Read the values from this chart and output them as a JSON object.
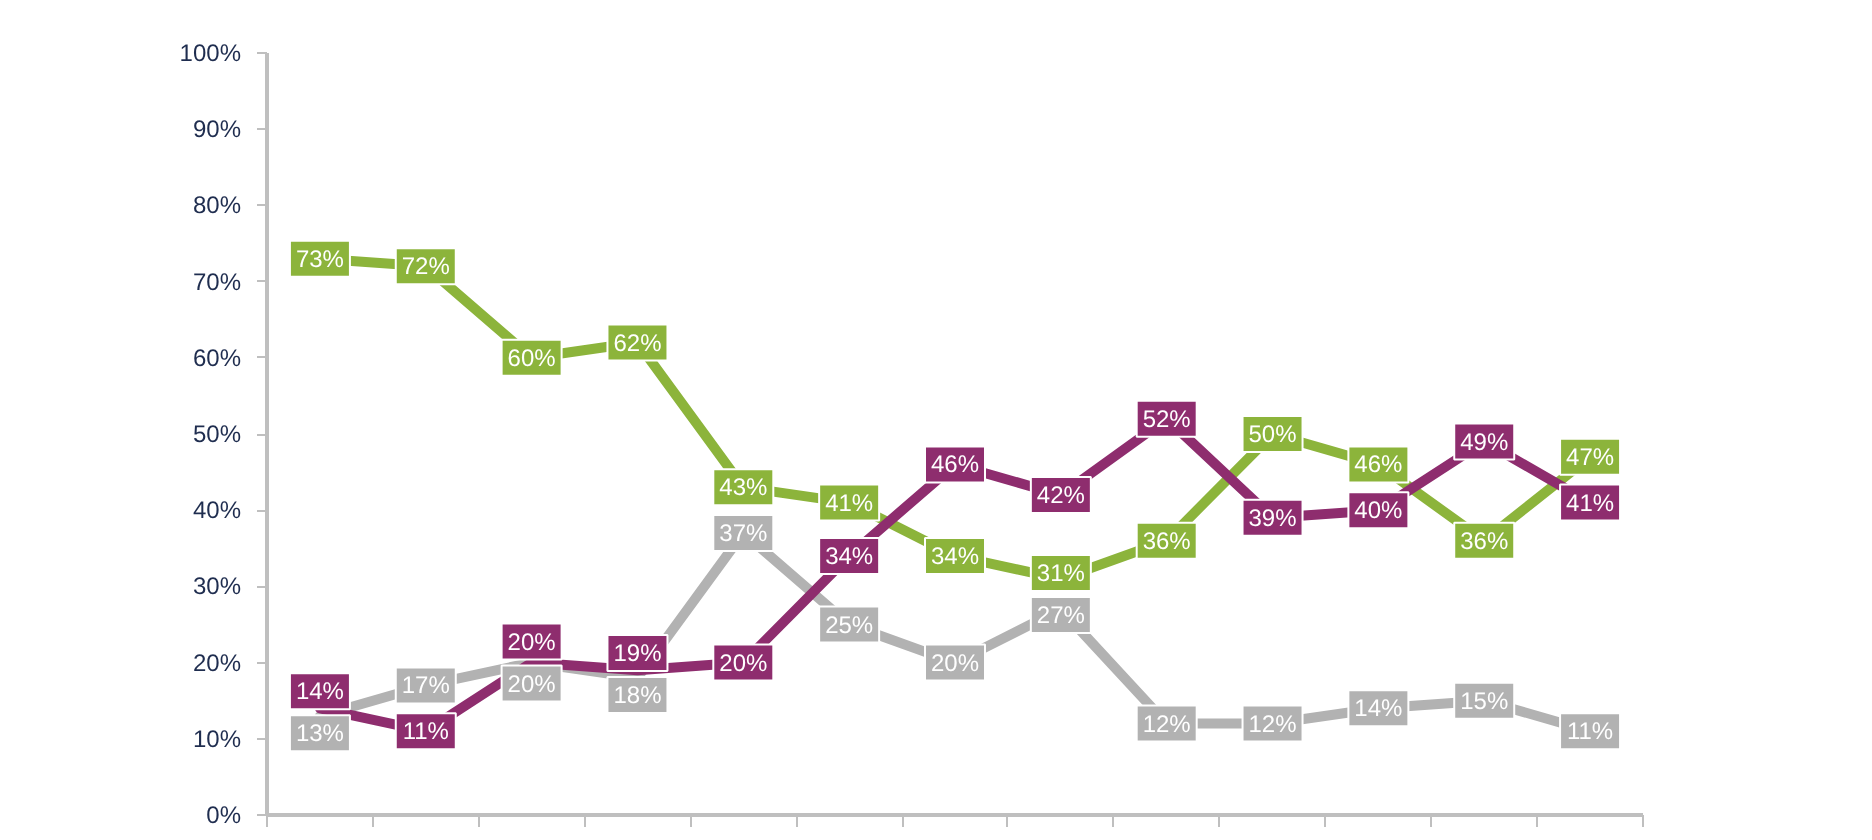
{
  "chart_data": {
    "type": "line",
    "categories": [
      null,
      null,
      null,
      null,
      null,
      null,
      null,
      null,
      null,
      null,
      null,
      null,
      null
    ],
    "ylim": [
      0,
      100
    ],
    "yticks": [
      {
        "value": 0,
        "label": "0%"
      },
      {
        "value": 10,
        "label": "10%"
      },
      {
        "value": 20,
        "label": "20%"
      },
      {
        "value": 30,
        "label": "30%"
      },
      {
        "value": 40,
        "label": "40%"
      },
      {
        "value": 50,
        "label": "50%"
      },
      {
        "value": 60,
        "label": "60%"
      },
      {
        "value": 70,
        "label": "70%"
      },
      {
        "value": 80,
        "label": "80%"
      },
      {
        "value": 90,
        "label": "90%"
      },
      {
        "value": 100,
        "label": "100%"
      }
    ],
    "tick_labels": "y",
    "grid": false,
    "marker": "square",
    "line_style": "solid",
    "series": [
      {
        "color": "#b2b2b2",
        "values": [
          13,
          17,
          20,
          18,
          37,
          25,
          20,
          27,
          12,
          12,
          14,
          15,
          11
        ],
        "value_labels": [
          "13%",
          "17%",
          "20%",
          "18%",
          "37%",
          "25%",
          "20%",
          "27%",
          "12%",
          "12%",
          "14%",
          "15%",
          "11%"
        ]
      },
      {
        "color": "#8cb43b",
        "values": [
          73,
          72,
          60,
          62,
          43,
          41,
          34,
          31,
          36,
          50,
          46,
          36,
          47
        ],
        "value_labels": [
          "73%",
          "72%",
          "60%",
          "62%",
          "43%",
          "41%",
          "34%",
          "31%",
          "36%",
          "50%",
          "46%",
          "36%",
          "47%"
        ]
      },
      {
        "color": "#8e2d6e",
        "values": [
          14,
          11,
          20,
          19,
          20,
          34,
          46,
          42,
          52,
          39,
          40,
          49,
          41
        ],
        "value_labels": [
          "14%",
          "11%",
          "20%",
          "19%",
          "20%",
          "34%",
          "46%",
          "42%",
          "52%",
          "39%",
          "40%",
          "49%",
          "41%"
        ]
      }
    ]
  }
}
